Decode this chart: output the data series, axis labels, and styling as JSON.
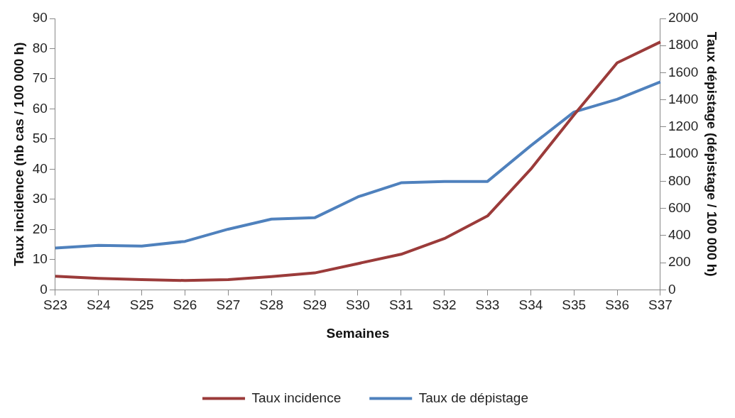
{
  "chart_data": {
    "type": "line",
    "xlabel": "Semaines",
    "ylabel": "Taux incidence (nb cas / 100 000 h)",
    "y2label": "Taux dépistage (dépistage / 100 000 h)",
    "categories": [
      "S23",
      "S24",
      "S25",
      "S26",
      "S27",
      "S28",
      "S29",
      "S30",
      "S31",
      "S32",
      "S33",
      "S34",
      "S35",
      "S36",
      "S37"
    ],
    "series": [
      {
        "name": "Taux incidence",
        "color": "#9b3b3a",
        "values": [
          4.5,
          3.8,
          3.4,
          3.1,
          3.4,
          4.4,
          5.6,
          8.7,
          11.8,
          17,
          24.5,
          40,
          58,
          75.3,
          82.2
        ]
      },
      {
        "name": "Taux de dépistage",
        "color": "#4f81bd",
        "axis": "y2",
        "values": [
          308,
          328,
          323,
          357,
          447,
          521,
          531,
          685,
          789,
          799,
          799,
          1062,
          1310,
          1404,
          1533
        ]
      }
    ],
    "ylim": [
      0,
      90
    ],
    "yticks": [
      0,
      10,
      20,
      30,
      40,
      50,
      60,
      70,
      80,
      90
    ],
    "y2lim": [
      0,
      2000
    ],
    "y2ticks": [
      0,
      200,
      400,
      600,
      800,
      1000,
      1200,
      1400,
      1600,
      1800,
      2000
    ],
    "grid": false,
    "legend": "bottom",
    "marker": "none",
    "line_style": "solid"
  }
}
